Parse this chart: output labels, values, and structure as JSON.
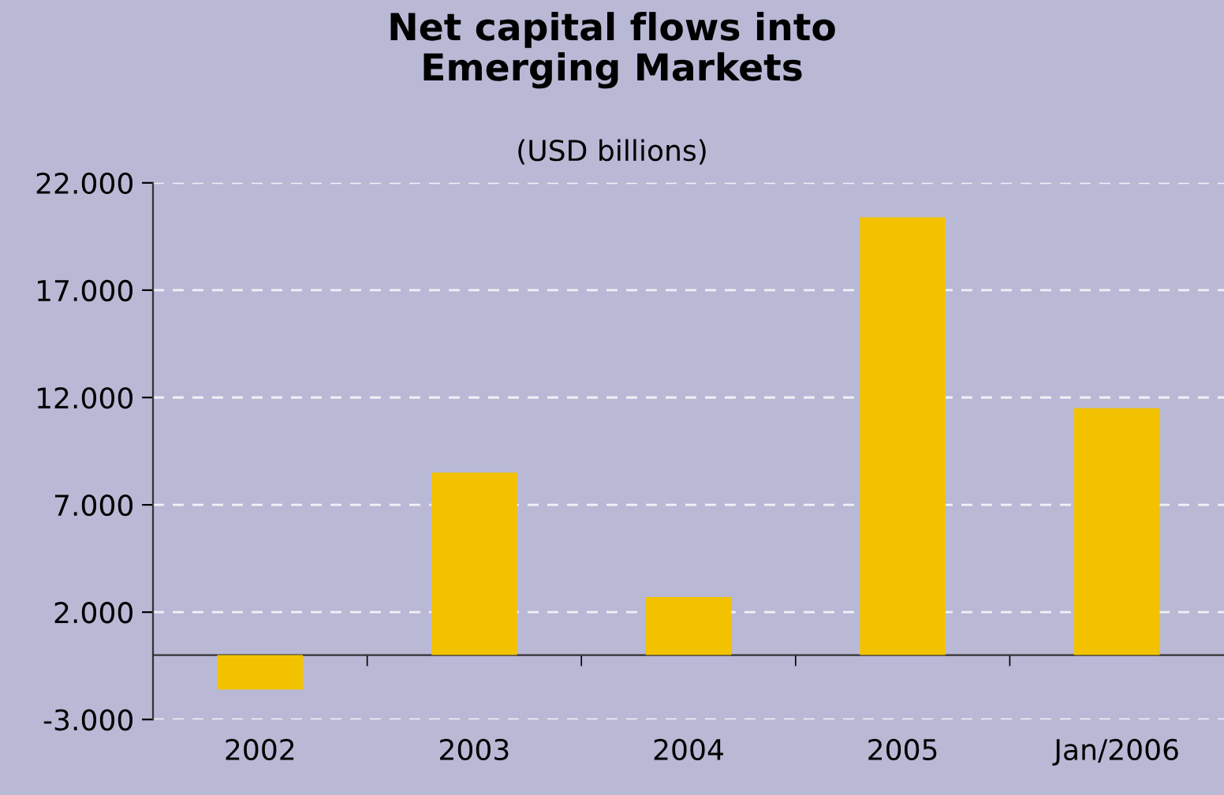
{
  "chart_data": {
    "type": "bar",
    "title": "Net capital flows into\nEmerging Markets",
    "subtitle": "(USD billions)",
    "categories": [
      "2002",
      "2003",
      "2004",
      "2005",
      "Jan/2006"
    ],
    "values": [
      -1.6,
      8.5,
      2.7,
      20.4,
      11.5
    ],
    "color": "#f2c200",
    "ylim": [
      -3,
      22
    ],
    "yticks": [
      {
        "value": -3,
        "label": "-3.000"
      },
      {
        "value": 2,
        "label": "2.000"
      },
      {
        "value": 7,
        "label": "7.000"
      },
      {
        "value": 12,
        "label": "12.000"
      },
      {
        "value": 17,
        "label": "17.000"
      },
      {
        "value": 22,
        "label": "22.000"
      }
    ],
    "grid": "y"
  }
}
